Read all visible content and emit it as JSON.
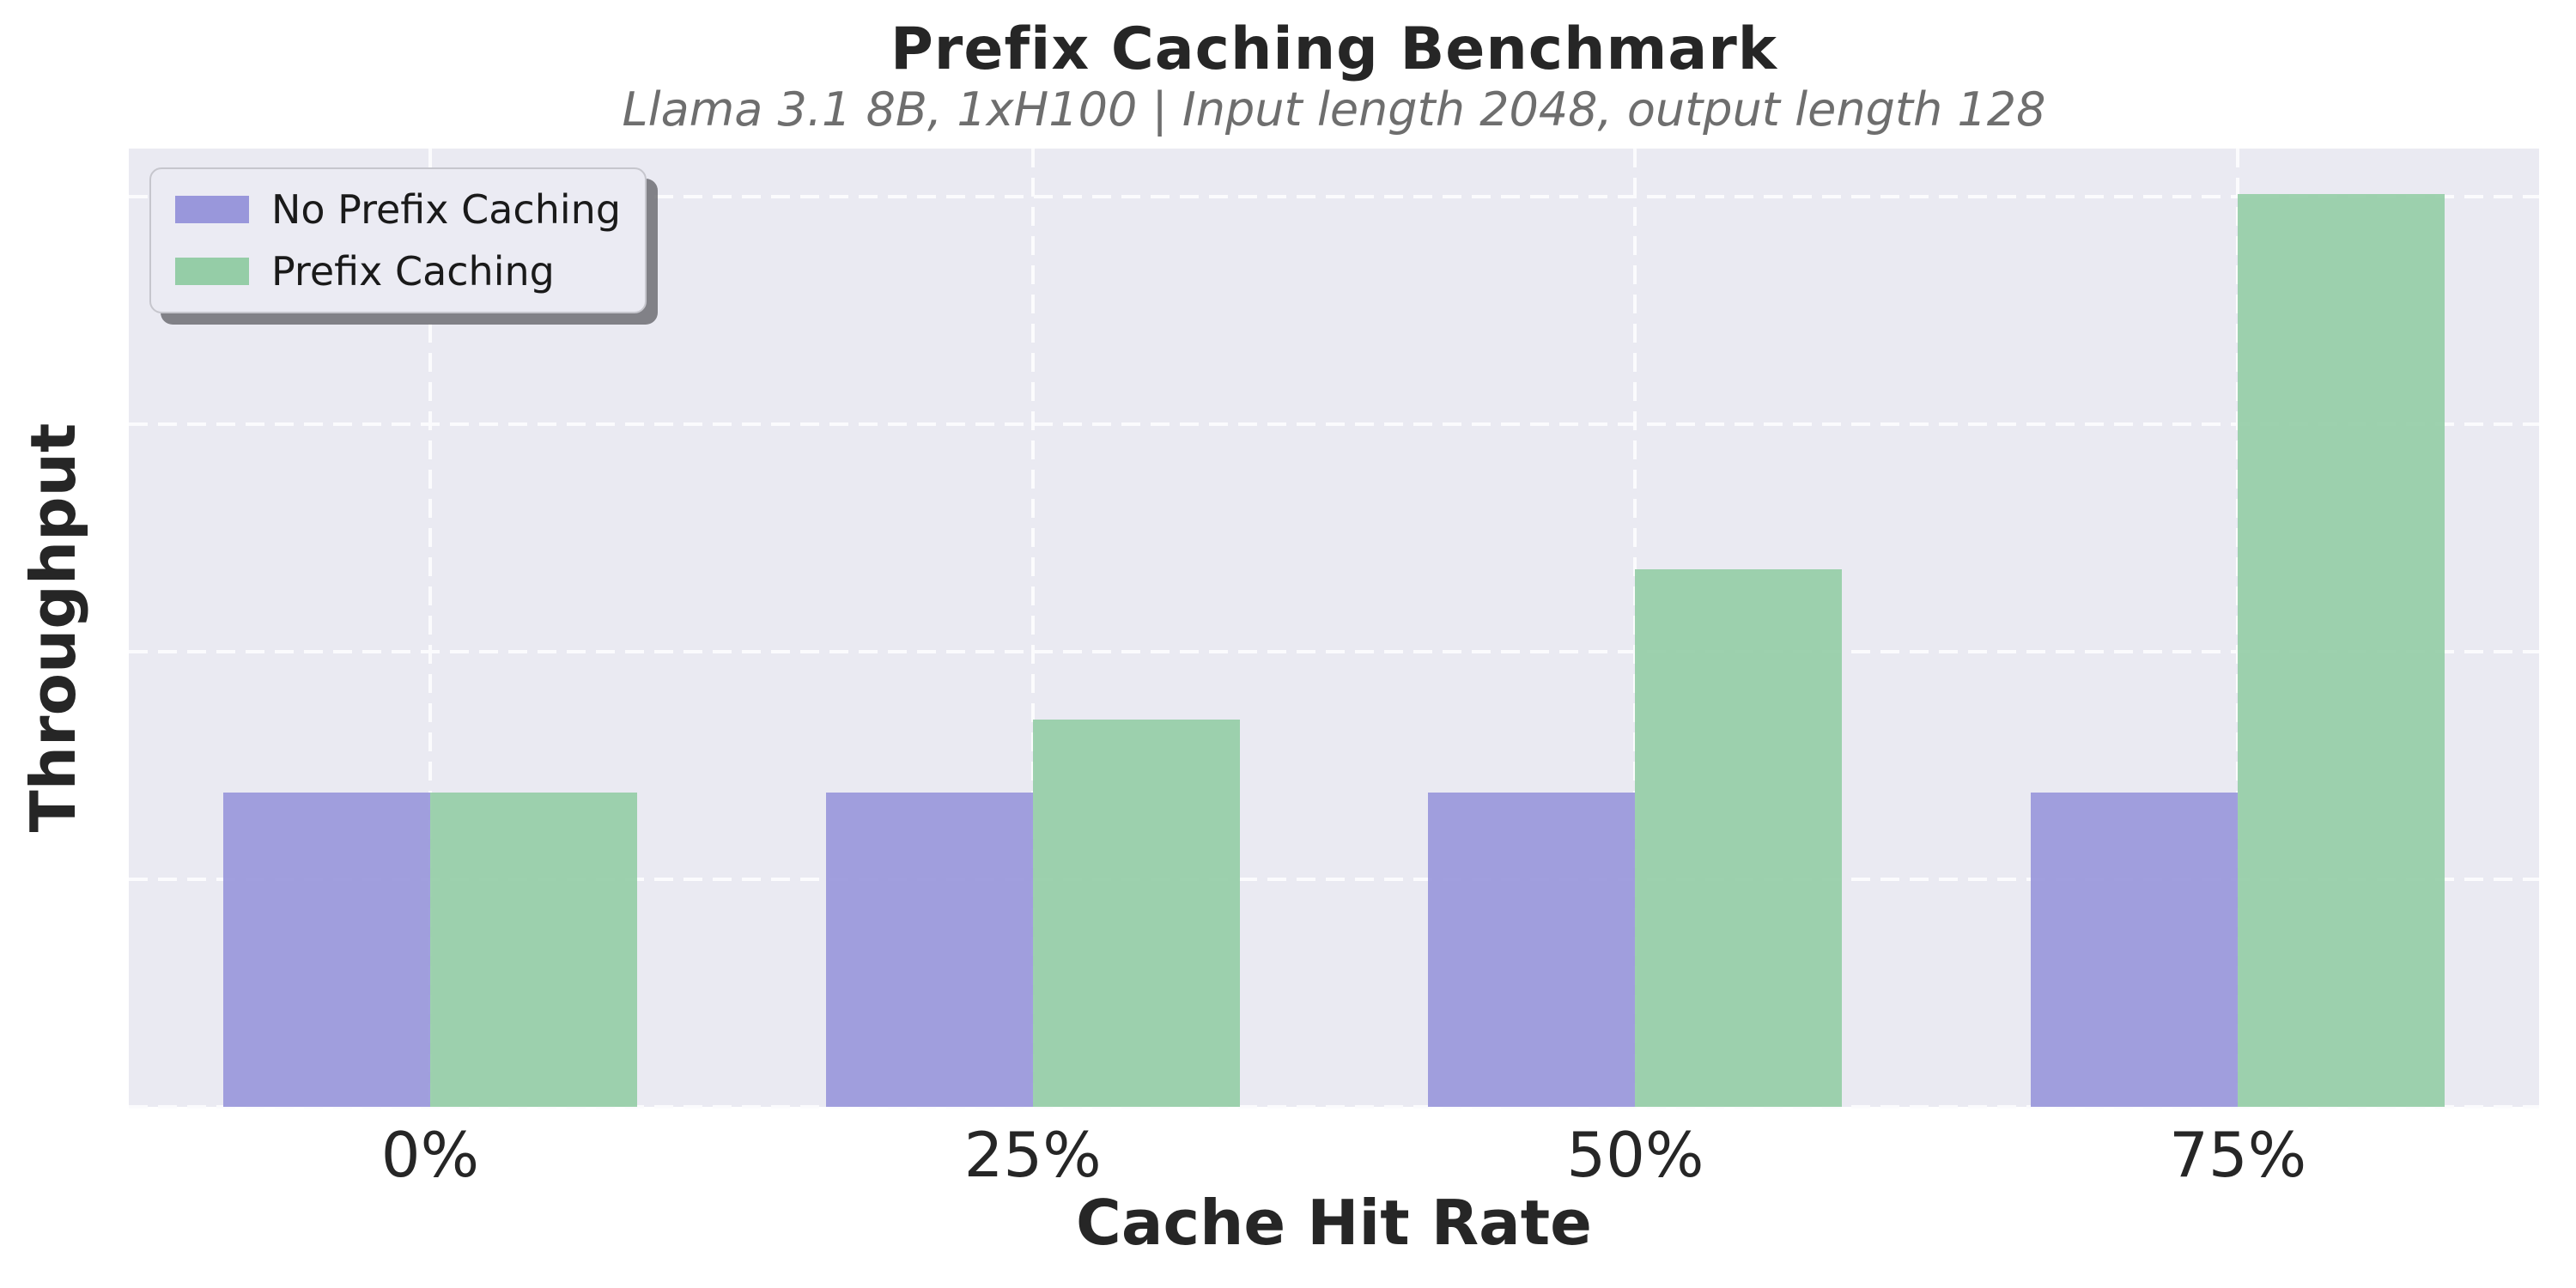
{
  "figure": {
    "title": "Prefix Caching Benchmark",
    "subtitle": "Llama 3.1 8B, 1xH100 | Input length 2048, output length 128",
    "xlabel": "Cache Hit Rate",
    "ylabel": "Throughput"
  },
  "colors": {
    "figure_bg": "#ffffff",
    "plot_bg": "#eaeaf2",
    "gridline": "#fbfbfd",
    "title_text": "#262626",
    "subtitle_text": "#6e6e6e",
    "tick_text": "#262626",
    "no_prefix_bar": "#9997db",
    "prefix_bar": "#95cda7",
    "legend_bg": "#ebebf3",
    "legend_border": "#c6c6cd",
    "legend_shadow": "#6e6e74"
  },
  "chart_data": {
    "type": "bar",
    "title": "Prefix Caching Benchmark",
    "subtitle": "Llama 3.1 8B, 1xH100 | Input length 2048, output length 128",
    "xlabel": "Cache Hit Rate",
    "ylabel": "Throughput",
    "categories": [
      "0%",
      "25%",
      "50%",
      "75%"
    ],
    "series": [
      {
        "name": "No Prefix Caching",
        "color": "#9997db",
        "values": [
          1.38,
          1.38,
          1.38,
          1.38
        ]
      },
      {
        "name": "Prefix Caching",
        "color": "#95cda7",
        "values": [
          1.38,
          1.7,
          2.36,
          4.01
        ]
      }
    ],
    "ylim": [
      0,
      4.21
    ],
    "y_gridline_values": [
      0,
      1,
      2,
      3,
      4
    ],
    "y_tick_labels_visible": false,
    "values_note": "y-axis has no numeric tick labels; values are in gridline units (Prefix Caching at 75% hit rate reaches gridline 4, ~2.9x the baseline)",
    "grid": "white dashed gridlines on light lavender background (seaborn darkgrid style)",
    "legend_position": "upper left",
    "bar_width_fraction_of_plot": 0.0859
  }
}
